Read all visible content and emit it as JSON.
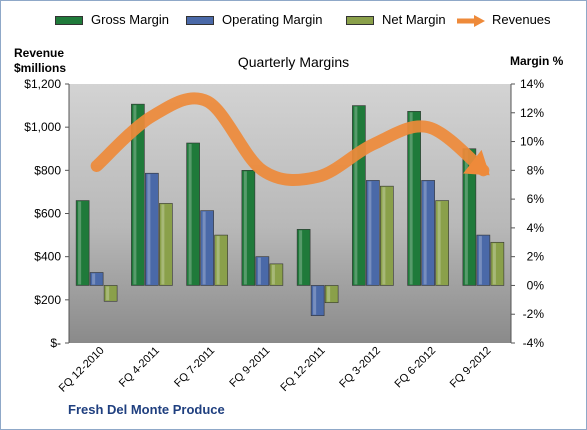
{
  "title": "Quarterly Margins",
  "company": "Fresh Del Monte Produce",
  "left_axis_title": [
    "Revenue",
    "$millions"
  ],
  "right_axis_title": "Margin %",
  "legend": [
    "Gross Margin",
    "Operating Margin",
    "Net Margin",
    "Revenues"
  ],
  "colors": {
    "gross": "#1f7a3a",
    "operating": "#4a69a8",
    "net": "#8aa04a",
    "revenues": "#ee8a3a",
    "plot_bg_top": "#d0d0d0",
    "plot_bg_bottom": "#8c8c8c"
  },
  "chart_data": {
    "type": "bar",
    "categories": [
      "FQ 12-2010",
      "FQ 4-2011",
      "FQ 7-2011",
      "FQ 9-2011",
      "FQ 12-2011",
      "FQ 3-2012",
      "FQ 6-2012",
      "FQ 9-2012"
    ],
    "series": [
      {
        "name": "Gross Margin",
        "axis": "right",
        "values": [
          5.9,
          12.6,
          9.9,
          8.0,
          3.9,
          12.5,
          12.1,
          9.5
        ]
      },
      {
        "name": "Operating Margin",
        "axis": "right",
        "values": [
          0.9,
          7.8,
          5.2,
          2.0,
          -2.1,
          7.3,
          7.3,
          3.5
        ]
      },
      {
        "name": "Net Margin",
        "axis": "right",
        "values": [
          -1.1,
          5.7,
          3.5,
          1.5,
          -1.2,
          6.9,
          5.9,
          3.0
        ]
      },
      {
        "name": "Revenues",
        "type": "line",
        "axis": "left",
        "values": [
          820,
          1050,
          1120,
          800,
          770,
          920,
          1000,
          800
        ]
      }
    ],
    "y_left": {
      "label": "Revenue $millions",
      "ylim": [
        0,
        1200
      ],
      "ticks": [
        "$-",
        "$200",
        "$400",
        "$600",
        "$800",
        "$1,000",
        "$1,200"
      ]
    },
    "y_right": {
      "label": "Margin %",
      "ylim": [
        -4,
        14
      ],
      "ticks": [
        "-4%",
        "-2%",
        "0%",
        "2%",
        "4%",
        "6%",
        "8%",
        "10%",
        "12%",
        "14%"
      ]
    },
    "legend_position": "top",
    "grid": false
  }
}
